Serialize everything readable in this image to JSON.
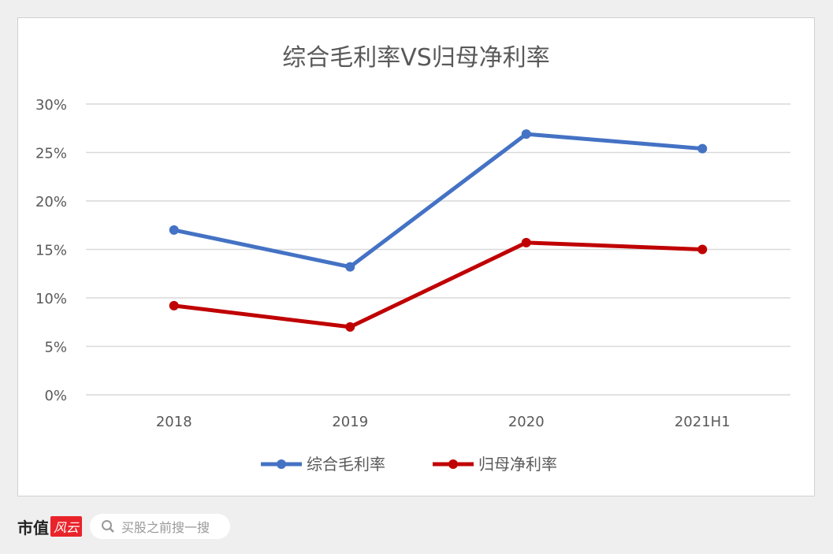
{
  "chart_data": {
    "type": "line",
    "title": "综合毛利率VS归母净利率",
    "categories": [
      "2018",
      "2019",
      "2020",
      "2021H1"
    ],
    "series": [
      {
        "name": "综合毛利率",
        "color": "#4472c4",
        "values": [
          17.0,
          13.2,
          26.9,
          25.4
        ]
      },
      {
        "name": "归母净利率",
        "color": "#c00000",
        "values": [
          9.2,
          7.0,
          15.7,
          15.0
        ]
      }
    ],
    "yticks": [
      "0%",
      "5%",
      "10%",
      "15%",
      "20%",
      "25%",
      "30%"
    ],
    "ylim": [
      0,
      30
    ],
    "grid": true,
    "legend": "bottom"
  },
  "footer": {
    "brand": "市值",
    "logo": "风云",
    "search_placeholder": "买股之前搜一搜"
  },
  "watermark": "市值风云"
}
